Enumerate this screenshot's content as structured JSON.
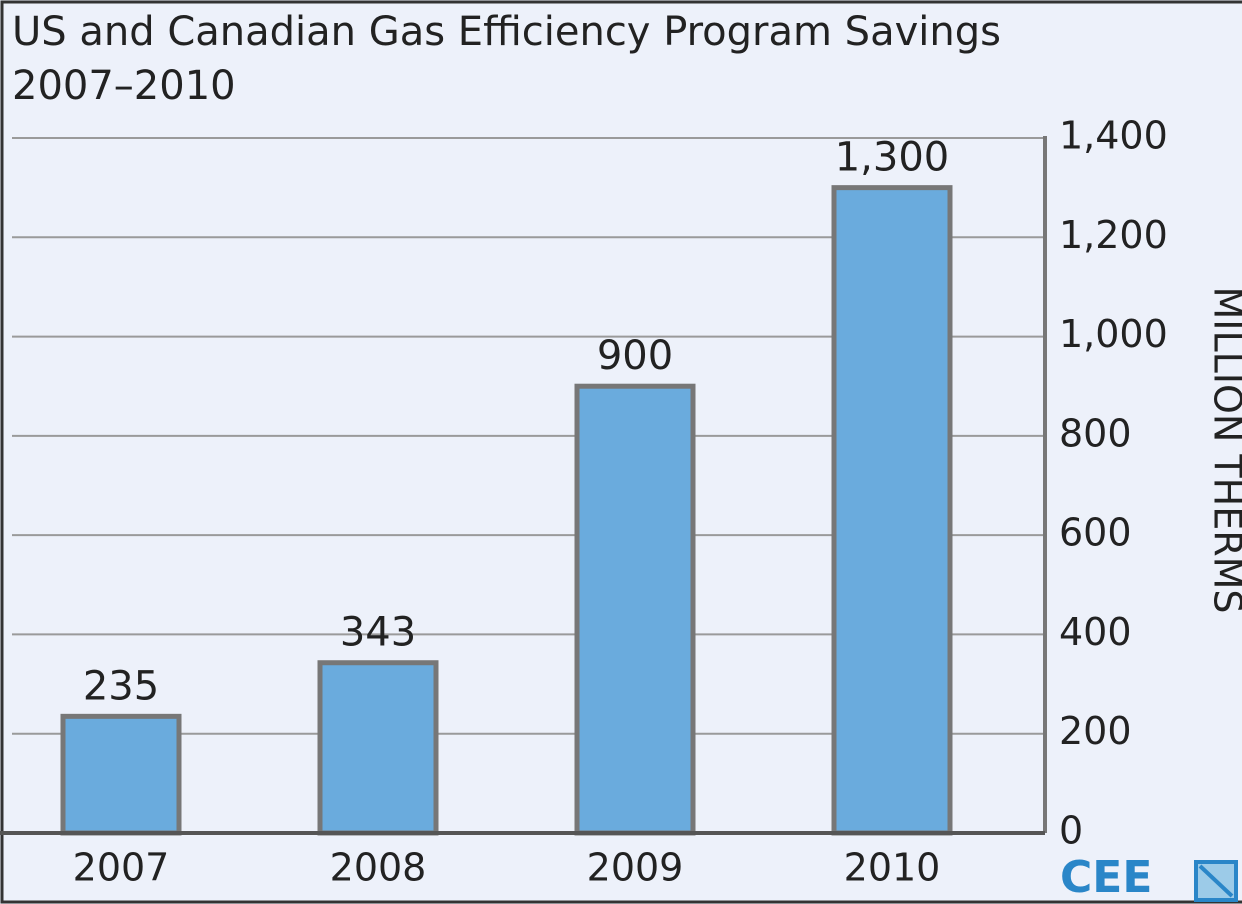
{
  "chart_data": {
    "type": "bar",
    "title": "US and Canadian Gas Efficiency Program Savings",
    "subtitle": "2007–2010",
    "y_label": "MILLION THERMS",
    "logo": "CEE",
    "categories": [
      "2007",
      "2008",
      "2009",
      "2010"
    ],
    "values": [
      235,
      343,
      900,
      1300
    ],
    "value_labels": [
      "235",
      "343",
      "900",
      "1,300"
    ],
    "color": "#6aabdd",
    "ylim": [
      0,
      1400
    ],
    "yticks": [
      0,
      200,
      400,
      600,
      800,
      {
        "value": 1000,
        "label": "1,000"
      },
      {
        "value": 1200,
        "label": "1,200"
      },
      {
        "value": 1400,
        "label": "1,400"
      }
    ],
    "grid": true,
    "y_axis_side": "right"
  }
}
